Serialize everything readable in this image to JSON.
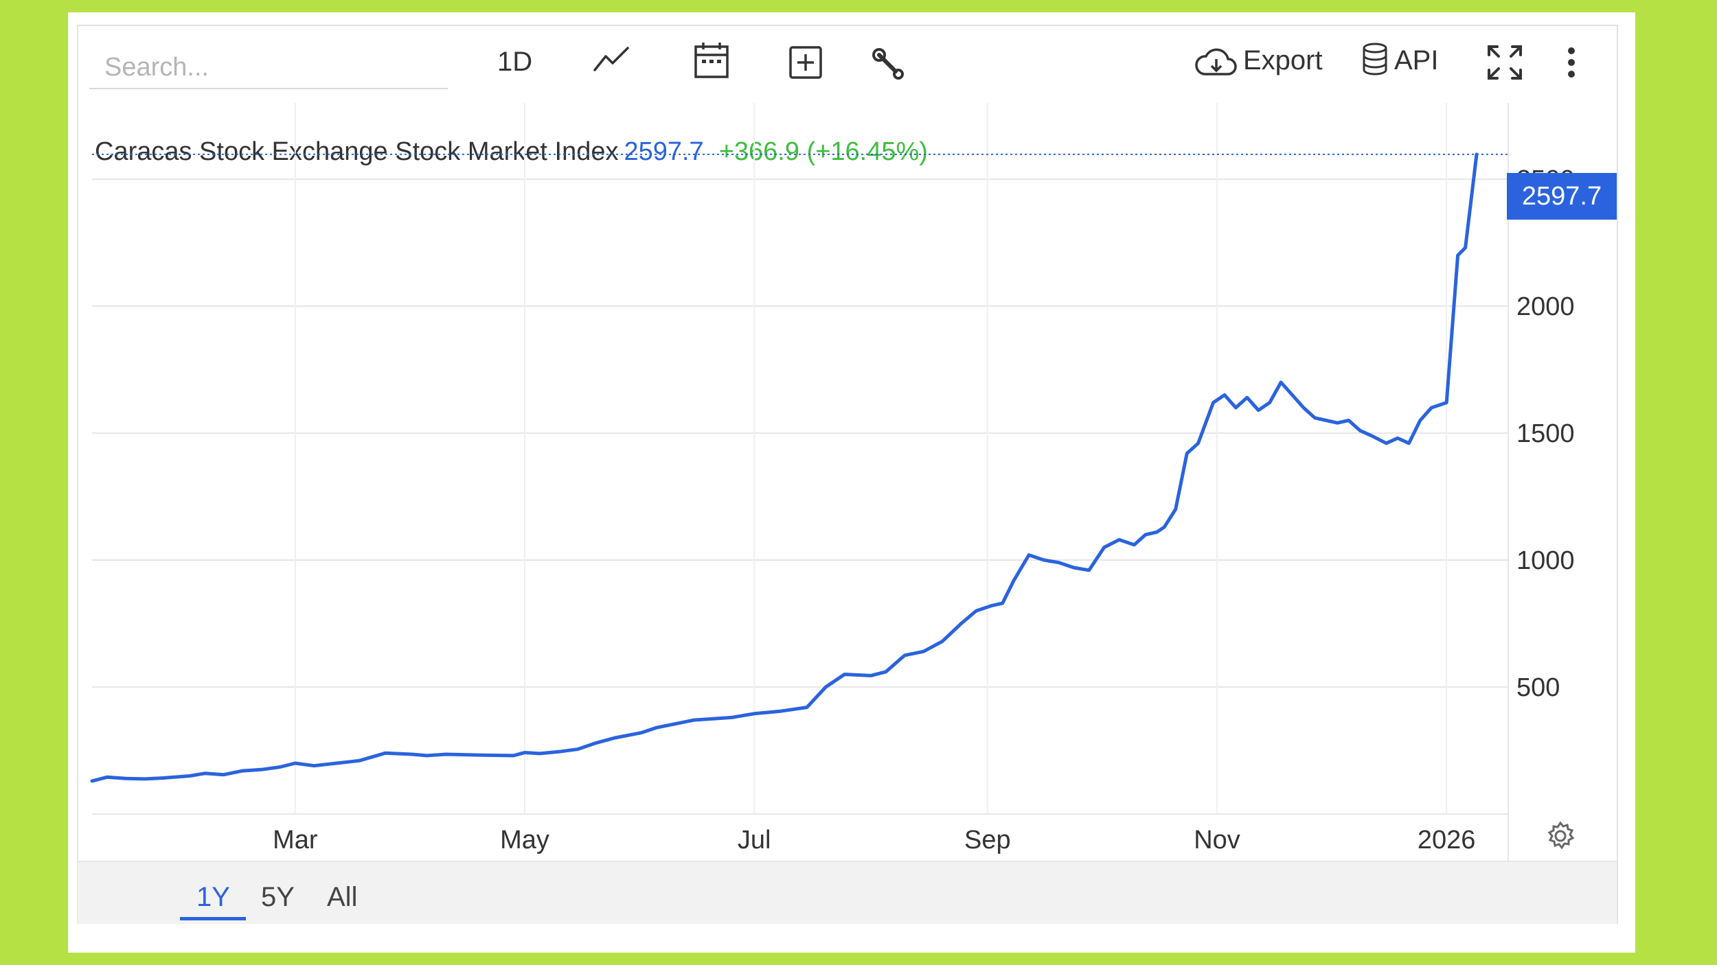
{
  "toolbar": {
    "search_placeholder": "Search...",
    "interval_label": "1D",
    "export_label": "Export",
    "api_label": "API"
  },
  "header": {
    "title": "Caracas Stock Exchange Stock Market Index",
    "last_value": "2597.7",
    "change_text": "+366.9 (+16.45%)"
  },
  "footer": {
    "ranges": [
      "1Y",
      "5Y",
      "All"
    ],
    "active_range": "1Y"
  },
  "colors": {
    "page_background": "#b5e144",
    "line": "#2a63dd",
    "positive_change": "#3ebd3e"
  },
  "chart_data": {
    "type": "line",
    "title": "Caracas Stock Exchange Stock Market Index",
    "xlabel": "",
    "ylabel": "",
    "x_tick_labels": [
      "Mar",
      "May",
      "Jul",
      "Sep",
      "Nov",
      "2026"
    ],
    "y_ticks": [
      500,
      1000,
      1500,
      2000,
      2500
    ],
    "ylim": [
      0,
      2800
    ],
    "xlim": [
      "2025-01-06",
      "2026-01-09"
    ],
    "grid": true,
    "last_value_label": "2597.7",
    "series": [
      {
        "x": [
          "2025-01-06",
          "2025-01-10",
          "2025-01-15",
          "2025-01-20",
          "2025-01-25",
          "2025-02-01",
          "2025-02-05",
          "2025-02-10",
          "2025-02-15",
          "2025-02-20",
          "2025-02-25",
          "2025-03-01",
          "2025-03-06",
          "2025-03-12",
          "2025-03-18",
          "2025-03-25",
          "2025-04-01",
          "2025-04-05",
          "2025-04-10",
          "2025-04-20",
          "2025-04-28",
          "2025-05-01",
          "2025-05-05",
          "2025-05-10",
          "2025-05-15",
          "2025-05-20",
          "2025-05-25",
          "2025-06-01",
          "2025-06-05",
          "2025-06-10",
          "2025-06-15",
          "2025-06-20",
          "2025-06-25",
          "2025-07-01",
          "2025-07-08",
          "2025-07-15",
          "2025-07-20",
          "2025-07-25",
          "2025-08-01",
          "2025-08-05",
          "2025-08-10",
          "2025-08-15",
          "2025-08-20",
          "2025-08-25",
          "2025-08-29",
          "2025-09-02",
          "2025-09-05",
          "2025-09-08",
          "2025-09-12",
          "2025-09-16",
          "2025-09-20",
          "2025-09-24",
          "2025-09-28",
          "2025-10-02",
          "2025-10-06",
          "2025-10-10",
          "2025-10-13",
          "2025-10-16",
          "2025-10-18",
          "2025-10-21",
          "2025-10-24",
          "2025-10-27",
          "2025-10-31",
          "2025-11-03",
          "2025-11-06",
          "2025-11-09",
          "2025-11-12",
          "2025-11-15",
          "2025-11-18",
          "2025-11-21",
          "2025-11-24",
          "2025-11-27",
          "2025-11-30",
          "2025-12-03",
          "2025-12-06",
          "2025-12-09",
          "2025-12-12",
          "2025-12-16",
          "2025-12-19",
          "2025-12-22",
          "2025-12-25",
          "2025-12-28",
          "2026-01-01",
          "2026-01-04",
          "2026-01-06",
          "2026-01-09"
        ],
        "y": [
          130,
          145,
          140,
          138,
          142,
          150,
          160,
          155,
          170,
          175,
          185,
          200,
          190,
          200,
          210,
          240,
          235,
          230,
          235,
          232,
          230,
          242,
          238,
          245,
          255,
          280,
          300,
          320,
          340,
          355,
          370,
          375,
          380,
          395,
          405,
          420,
          500,
          550,
          545,
          560,
          625,
          640,
          680,
          750,
          800,
          820,
          830,
          920,
          1020,
          1000,
          990,
          970,
          960,
          1050,
          1080,
          1060,
          1100,
          1110,
          1130,
          1200,
          1420,
          1460,
          1620,
          1650,
          1600,
          1640,
          1590,
          1620,
          1700,
          1650,
          1600,
          1560,
          1550,
          1540,
          1550,
          1510,
          1490,
          1460,
          1480,
          1460,
          1550,
          1600,
          1620,
          2200,
          2230,
          2597.7
        ]
      }
    ]
  }
}
